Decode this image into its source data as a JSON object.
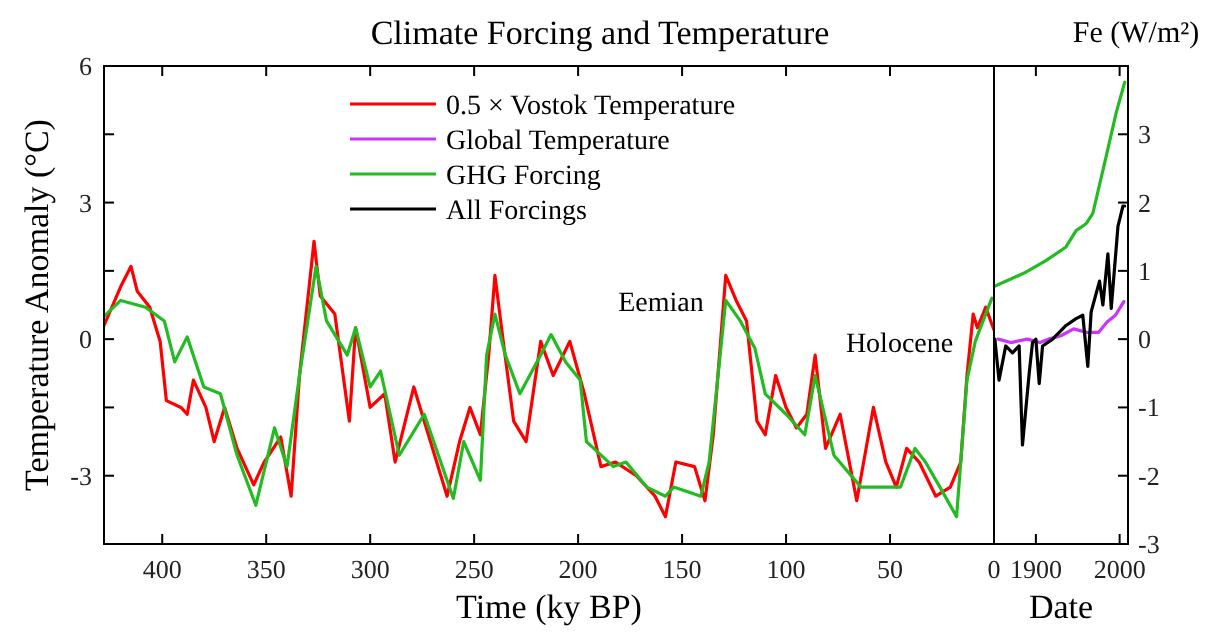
{
  "chart_data": [
    {
      "type": "line",
      "title": "Climate Forcing and Temperature",
      "xlabel": "Time (ky BP)",
      "ylabel": "Temperature Anomaly (°C)",
      "xlim": [
        428,
        0
      ],
      "xticks": [
        400,
        350,
        300,
        250,
        200,
        150,
        100,
        50,
        0
      ],
      "ylim": [
        -4.5,
        6
      ],
      "yticks": [
        {
          "value": -4.5,
          "label": null
        },
        -3,
        {
          "value": -1.5,
          "label": null
        },
        0,
        {
          "value": 1.5,
          "label": null
        },
        3,
        {
          "value": 4.5,
          "label": null
        },
        6
      ],
      "legend": "top",
      "grid": false,
      "annotations": [
        {
          "text": "Eemian",
          "x": 130,
          "y": 1.5
        },
        {
          "text": "Holocene",
          "x": 10,
          "y": 0.6
        }
      ],
      "series": [
        {
          "name": "0.5 × Vostok Temperature",
          "color": "#ff0000",
          "x": [
            428,
            420,
            415,
            412,
            406,
            401,
            398,
            391,
            388,
            385,
            379,
            375,
            370,
            364,
            356,
            351,
            343,
            338,
            334,
            329,
            327,
            324,
            317,
            310,
            307,
            300,
            293,
            288,
            279,
            269,
            263,
            257,
            252,
            247,
            243,
            240,
            236,
            231,
            225,
            218,
            212,
            204,
            197,
            189,
            182,
            172,
            163,
            158,
            153,
            144,
            139,
            135,
            129,
            124,
            119,
            114,
            110,
            105,
            100,
            95,
            90,
            86,
            81,
            74,
            66,
            58,
            52,
            47,
            42,
            36,
            28,
            21,
            16,
            13,
            10,
            8,
            4,
            0
          ],
          "values": [
            0.3,
            1.15,
            1.6,
            1.05,
            0.7,
            -0.05,
            -1.35,
            -1.5,
            -1.65,
            -0.9,
            -1.5,
            -2.25,
            -1.5,
            -2.4,
            -3.2,
            -2.7,
            -2.15,
            -3.45,
            -0.8,
            1.3,
            2.15,
            0.95,
            0.55,
            -1.8,
            0.25,
            -1.5,
            -1.2,
            -2.7,
            -1.05,
            -2.55,
            -3.45,
            -2.25,
            -1.5,
            -2.1,
            -0.35,
            1.4,
            -0.05,
            -1.8,
            -2.25,
            -0.05,
            -0.8,
            -0.05,
            -1.2,
            -2.8,
            -2.7,
            -3.0,
            -3.45,
            -3.9,
            -2.7,
            -2.8,
            -3.55,
            -2.1,
            1.4,
            0.85,
            0.4,
            -1.8,
            -2.1,
            -0.8,
            -1.5,
            -1.95,
            -1.65,
            -0.35,
            -2.4,
            -1.65,
            -3.55,
            -1.5,
            -2.7,
            -3.25,
            -2.4,
            -2.7,
            -3.45,
            -3.25,
            -2.7,
            -0.8,
            0.55,
            0.25,
            0.7,
            0.2
          ]
        },
        {
          "color": "#22bb22",
          "x": [
            428,
            420,
            408,
            399,
            394,
            388,
            380,
            372,
            364,
            355,
            346,
            340,
            334,
            326,
            321,
            311,
            307,
            300,
            295,
            286,
            274,
            260,
            255,
            247,
            244,
            240,
            235,
            228,
            218,
            213,
            206,
            199,
            196,
            183,
            177,
            167,
            158,
            154,
            141,
            137,
            129,
            122,
            115,
            110,
            100,
            91,
            86,
            77,
            64,
            55,
            45,
            38,
            33,
            26,
            18,
            13,
            9,
            4,
            1
          ],
          "values": [
            0.5,
            0.85,
            0.7,
            0.4,
            -0.5,
            0.05,
            -1.05,
            -1.2,
            -2.55,
            -3.65,
            -1.95,
            -2.8,
            -0.8,
            1.6,
            0.4,
            -0.35,
            0.25,
            -1.05,
            -0.7,
            -2.55,
            -1.65,
            -3.5,
            -2.25,
            -3.1,
            -0.35,
            0.55,
            -0.35,
            -1.2,
            -0.35,
            0.1,
            -0.5,
            -0.9,
            -2.25,
            -2.8,
            -2.7,
            -3.25,
            -3.45,
            -3.25,
            -3.45,
            -2.7,
            0.85,
            0.4,
            -0.2,
            -1.2,
            -1.65,
            -2.1,
            -0.8,
            -2.55,
            -3.25,
            -3.25,
            -3.25,
            -2.4,
            -2.7,
            -3.25,
            -3.9,
            -0.9,
            -0.05,
            0.55,
            0.9
          ]
        }
      ]
    },
    {
      "type": "line",
      "xlabel": "Date",
      "y2label": "Fe (W/m²)",
      "xlim": [
        1850,
        2010
      ],
      "xticks": [
        1900,
        2000
      ],
      "y2lim": [
        -3,
        4
      ],
      "y2ticks": [
        -3,
        -2,
        -1,
        0,
        1,
        2,
        3
      ],
      "legend": "top left",
      "grid": false,
      "series": [
        {
          "name": "Global Temperature",
          "color": "#cc33ff",
          "axis": "y2",
          "x": [
            1855,
            1870,
            1890,
            1905,
            1915,
            1930,
            1945,
            1960,
            1975,
            1985,
            1995,
            2005
          ],
          "values": [
            0.0,
            -0.05,
            0.0,
            -0.05,
            0.0,
            0.05,
            0.15,
            0.1,
            0.1,
            0.25,
            0.35,
            0.55
          ]
        },
        {
          "name": "GHG Forcing",
          "color": "#22bb22",
          "axis": "y2",
          "x": [
            1850,
            1888,
            1912,
            1936,
            1948,
            1960,
            1968,
            1984,
            1996,
            2006
          ],
          "values": [
            0.77,
            0.98,
            1.15,
            1.35,
            1.59,
            1.69,
            1.84,
            2.68,
            3.32,
            3.76
          ]
        },
        {
          "name": "All Forcings",
          "color": "#000000",
          "axis": "y2",
          "x": [
            1851,
            1856,
            1864,
            1872,
            1880,
            1884,
            1892,
            1896,
            1900,
            1904,
            1908,
            1920,
            1936,
            1948,
            1956,
            1962,
            1966,
            1976,
            1980,
            1986,
            1990,
            1994,
            1998,
            2004,
            2006
          ],
          "values": [
            0,
            -0.6,
            -0.1,
            -0.2,
            -0.1,
            -1.55,
            -0.5,
            -0.05,
            0,
            -0.65,
            -0.1,
            0,
            0.2,
            0.3,
            0.35,
            -0.4,
            0.4,
            0.85,
            0.5,
            1.25,
            0.45,
            1.05,
            1.65,
            1.95,
            1.95
          ]
        }
      ]
    }
  ]
}
